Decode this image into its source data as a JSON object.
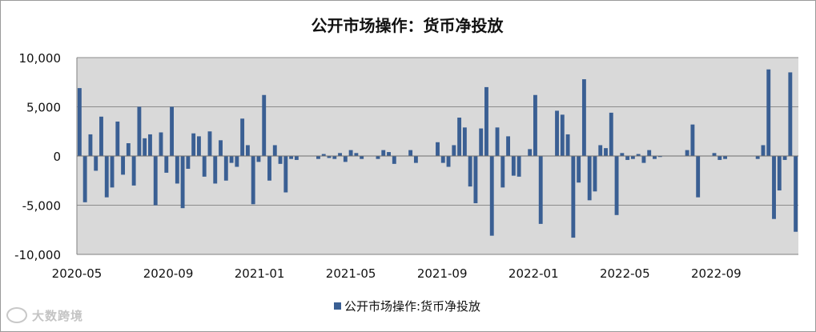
{
  "chart_data": {
    "type": "bar",
    "title": "公开市场操作：货币净投放",
    "legend": "公开市场操作:货币净投放",
    "legend_position": "bottom",
    "grid": true,
    "ylim": [
      -10000,
      10000
    ],
    "yticks": [
      "10,000",
      "5,000",
      "0",
      "-5,000",
      "-10,000"
    ],
    "ytick_values": [
      10000,
      5000,
      0,
      -5000,
      -10000
    ],
    "xticks": [
      "2020-05",
      "2020-09",
      "2021-01",
      "2021-05",
      "2021-09",
      "2022-01",
      "2022-05",
      "2022-09"
    ],
    "series": [
      {
        "color": "#3a5f93",
        "values": [
          6900,
          -4700,
          2200,
          -1500,
          4000,
          -4200,
          -3200,
          3500,
          -1900,
          1300,
          -3000,
          5000,
          1800,
          2200,
          -5000,
          2400,
          -1700,
          5000,
          -2800,
          -5300,
          -1300,
          2300,
          2000,
          -2100,
          2500,
          -2800,
          1600,
          -2500,
          -700,
          -1100,
          3800,
          1100,
          -4900,
          -600,
          6200,
          -2500,
          1100,
          -800,
          -3700,
          -300,
          -400,
          0,
          0,
          0,
          -300,
          200,
          -200,
          -300,
          300,
          -600,
          600,
          300,
          -300,
          0,
          0,
          -300,
          600,
          400,
          -800,
          0,
          0,
          600,
          -700,
          0,
          0,
          0,
          1400,
          -700,
          -1100,
          1100,
          3900,
          2900,
          -3100,
          -4800,
          2800,
          7000,
          -8100,
          2900,
          -3200,
          2000,
          -2000,
          -2100,
          0,
          700,
          6200,
          -6900,
          0,
          0,
          4600,
          4200,
          2200,
          -8300,
          -2700,
          7800,
          -4500,
          -3600,
          1100,
          800,
          4400,
          -6000,
          300,
          -400,
          -300,
          200,
          -700,
          600,
          -300,
          -100,
          0,
          0,
          0,
          0,
          600,
          3200,
          -4200,
          0,
          0,
          300,
          -400,
          -300,
          0,
          0,
          0,
          0,
          0,
          -300,
          1100,
          8800,
          -6400,
          -3500,
          -400,
          8500,
          -7700
        ]
      }
    ]
  },
  "watermark": "大数跨境"
}
